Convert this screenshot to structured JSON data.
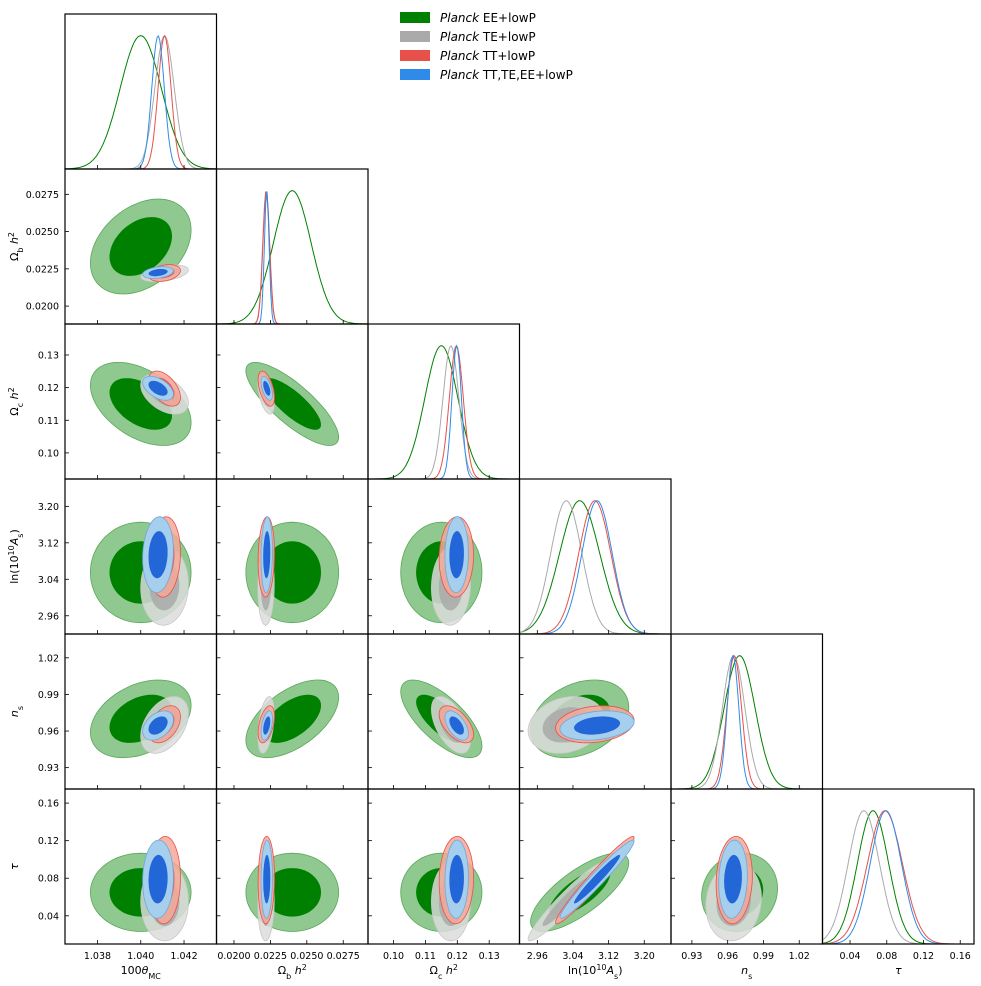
{
  "chart_data": {
    "type": "triangle",
    "title": "",
    "legend": [
      {
        "label_em": "Planck",
        "label": " EE+lowP",
        "color": "#008000"
      },
      {
        "label_em": "Planck",
        "label": " TE+lowP",
        "color": "#aaaaaa"
      },
      {
        "label_em": "Planck",
        "label": " TT+lowP",
        "color": "#e8504a"
      },
      {
        "label_em": "Planck",
        "label": " TT,TE,EE+lowP",
        "color": "#2f8be8"
      }
    ],
    "legend_position": "top-right",
    "parameters": [
      {
        "name": "100θMC",
        "axis_label": "100θ_MC",
        "range": [
          1.0365,
          1.0435
        ],
        "ticks": [
          "1.038",
          "1.040",
          "1.042"
        ]
      },
      {
        "name": "Ωb h²",
        "axis_label": "Ω_b h²",
        "range": [
          0.0188,
          0.0292
        ],
        "ticks": [
          "0.0200",
          "0.0225",
          "0.0250",
          "0.0275"
        ]
      },
      {
        "name": "Ωc h²",
        "axis_label": "Ω_c h²",
        "range": [
          0.092,
          0.1395
        ],
        "ticks": [
          "0.10",
          "0.11",
          "0.12",
          "0.13"
        ]
      },
      {
        "name": "ln(10¹⁰As)",
        "axis_label": "ln(10^10 A_s)",
        "range": [
          2.92,
          3.26
        ],
        "ticks": [
          "2.96",
          "3.04",
          "3.12",
          "3.20"
        ]
      },
      {
        "name": "ns",
        "axis_label": "n_s",
        "range": [
          0.9125,
          1.0395
        ],
        "ticks": [
          "0.93",
          "0.96",
          "0.99",
          "1.02"
        ]
      },
      {
        "name": "τ",
        "axis_label": "τ",
        "range": [
          0.01,
          0.175
        ],
        "ticks": [
          "0.04",
          "0.08",
          "0.12",
          "0.16"
        ]
      }
    ],
    "series": [
      {
        "name": "EE+lowP",
        "means": [
          1.04,
          0.024,
          0.115,
          3.055,
          0.97,
          0.065
        ],
        "sigmas": [
          0.00095,
          0.0013,
          0.0052,
          0.045,
          0.013,
          0.017
        ]
      },
      {
        "name": "TE+lowP",
        "means": [
          1.0411,
          0.0222,
          0.118,
          3.025,
          0.965,
          0.055
        ],
        "sigmas": [
          0.00045,
          0.00023,
          0.0025,
          0.035,
          0.0095,
          0.017
        ]
      },
      {
        "name": "TT+lowP",
        "means": [
          1.0411,
          0.02222,
          0.1197,
          3.089,
          0.9655,
          0.078
        ],
        "sigmas": [
          0.0003,
          0.00023,
          0.0022,
          0.036,
          0.0062,
          0.019
        ]
      },
      {
        "name": "TT,TE,EE+lowP",
        "means": [
          1.0408,
          0.02225,
          0.1198,
          3.094,
          0.9645,
          0.079
        ],
        "sigmas": [
          0.00029,
          0.00016,
          0.0015,
          0.034,
          0.0049,
          0.017
        ]
      }
    ]
  }
}
